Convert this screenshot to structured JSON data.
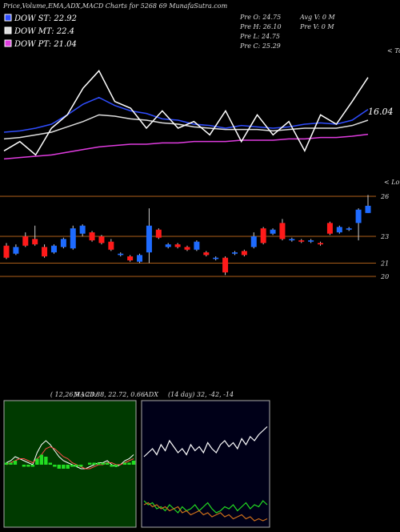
{
  "header": {
    "title": "Price,Volume,EMA,ADX,MACD Charts for 5268 69 MunafaSutra.com"
  },
  "stats": [
    "Pre O: 24.75",
    "Pre H: 26.10",
    "Pre L: 24.75",
    "Pre C: 25.29"
  ],
  "volume_stats": [
    "Avg V: 0  M",
    "Pre V: 0  M"
  ],
  "chart_data": [
    {
      "type": "line",
      "annotation": "16.04",
      "top_label": "< Tops",
      "bottom_label": "< Lows",
      "ylim": [
        17,
        27.5
      ],
      "series": [
        {
          "name": "DOW ST: 22.92",
          "color": "#2f4dff",
          "values": [
            21.2,
            21.3,
            21.5,
            21.8,
            22.5,
            23.3,
            23.8,
            23.2,
            22.8,
            22.6,
            22.2,
            22.1,
            21.8,
            21.7,
            21.5,
            21.7,
            21.6,
            21.5,
            21.6,
            21.8,
            21.9,
            21.8,
            22.1,
            22.9
          ]
        },
        {
          "name": "DOW MT: 22.4",
          "color": "#dddddd",
          "values": [
            20.7,
            20.8,
            21,
            21.2,
            21.6,
            22,
            22.5,
            22.4,
            22.2,
            22.1,
            21.9,
            21.8,
            21.6,
            21.5,
            21.4,
            21.4,
            21.4,
            21.3,
            21.4,
            21.5,
            21.5,
            21.5,
            21.7,
            22.1
          ]
        },
        {
          "name": "DOW PT: 21.04",
          "color": "#e03ce0",
          "values": [
            19.2,
            19.3,
            19.4,
            19.5,
            19.7,
            19.9,
            20.1,
            20.2,
            20.3,
            20.3,
            20.4,
            20.4,
            20.5,
            20.5,
            20.5,
            20.6,
            20.6,
            20.6,
            20.7,
            20.7,
            20.8,
            20.8,
            20.9,
            21.04
          ]
        },
        {
          "color": "#ffffff",
          "values": [
            19.8,
            20.5,
            19.5,
            21.5,
            22.5,
            24.5,
            25.8,
            23.5,
            23,
            21.5,
            22.8,
            21.5,
            22,
            21,
            22.8,
            20.5,
            22.5,
            21,
            22,
            19.8,
            22.5,
            21.8,
            23.5,
            25.3
          ]
        }
      ]
    },
    {
      "type": "candlestick",
      "ylim": [
        19.1,
        26.3
      ],
      "yticks": [
        26,
        23,
        21,
        20
      ],
      "up_color": "#1e6bff",
      "down_color": "#ff1a1a",
      "grid_color": "#b0601a",
      "open": [
        22.3,
        21.7,
        23.0,
        22.8,
        22.2,
        21.8,
        22.2,
        22.1,
        23.2,
        23.3,
        23.0,
        22.6,
        21.6,
        21.5,
        21.1,
        21.8,
        23.5,
        22.2,
        22.4,
        22.2,
        22.0,
        21.8,
        21.3,
        21.4,
        21.7,
        21.9,
        22.2,
        23.6,
        23.2,
        24.0,
        22.7,
        22.7,
        22.6,
        22.5,
        24.0,
        23.3,
        23.5,
        24.0,
        24.75
      ],
      "close": [
        21.4,
        22.2,
        22.3,
        22.4,
        21.5,
        22.3,
        22.8,
        23.6,
        23.8,
        22.7,
        22.5,
        22.0,
        21.7,
        21.2,
        21.6,
        23.8,
        22.9,
        22.4,
        22.2,
        22.0,
        22.6,
        21.6,
        21.4,
        20.3,
        21.8,
        21.6,
        23.0,
        22.5,
        23.5,
        22.8,
        22.8,
        22.6,
        22.7,
        22.4,
        23.2,
        23.7,
        23.6,
        25.0,
        25.29
      ],
      "high": [
        22.5,
        22.4,
        23.3,
        23.8,
        22.4,
        22.4,
        22.9,
        23.8,
        23.9,
        23.4,
        23.1,
        22.8,
        21.8,
        21.6,
        21.7,
        25.1,
        23.6,
        22.5,
        22.5,
        22.3,
        22.7,
        21.9,
        21.5,
        21.5,
        21.9,
        22.0,
        23.3,
        23.7,
        23.6,
        24.3,
        22.9,
        22.8,
        22.8,
        22.6,
        24.1,
        23.8,
        23.7,
        25.1,
        26.1
      ],
      "low": [
        21.3,
        21.6,
        22.2,
        22.3,
        21.4,
        21.7,
        22.1,
        22.0,
        23.0,
        22.6,
        22.4,
        21.9,
        21.5,
        21.1,
        21.0,
        21.0,
        22.8,
        22.1,
        22.1,
        21.9,
        21.9,
        21.5,
        21.2,
        20.1,
        21.6,
        21.5,
        22.1,
        22.4,
        23.1,
        22.7,
        22.6,
        22.5,
        22.5,
        22.3,
        23.1,
        23.2,
        23.4,
        22.7,
        24.75
      ]
    },
    {
      "type": "macd",
      "label": "MACD:",
      "params": "( 12,26,9 ) 23.88, 22.72, 0.66",
      "ylim": [
        -3,
        3
      ],
      "series": [
        {
          "color": "#ffffff",
          "values": [
            0.1,
            0.2,
            0.4,
            0.3,
            0.2,
            0.1,
            0.0,
            0.6,
            1.0,
            1.2,
            1.0,
            0.7,
            0.4,
            0.2,
            0.1,
            0.0,
            -0.1,
            -0.2,
            -0.2,
            -0.1,
            0.0,
            0.1,
            0.1,
            0.2,
            0.0,
            -0.1,
            0.0,
            0.2,
            0.3,
            0.5
          ]
        },
        {
          "color": "#ff4a4a",
          "values": [
            0.0,
            0.1,
            0.2,
            0.3,
            0.3,
            0.2,
            0.1,
            0.3,
            0.5,
            0.8,
            0.9,
            0.8,
            0.6,
            0.4,
            0.3,
            0.1,
            0.0,
            -0.1,
            -0.2,
            -0.2,
            -0.1,
            0.0,
            0.0,
            0.1,
            0.1,
            0.0,
            0.0,
            0.1,
            0.2,
            0.3
          ]
        },
        {
          "type": "histogram",
          "color": "#22dd22",
          "values": [
            0.1,
            0.1,
            0.2,
            0.0,
            -0.1,
            -0.1,
            -0.1,
            0.3,
            0.5,
            0.4,
            0.1,
            -0.1,
            -0.2,
            -0.2,
            -0.2,
            -0.1,
            -0.1,
            -0.1,
            0.0,
            0.1,
            0.1,
            0.1,
            0.1,
            0.1,
            -0.1,
            -0.1,
            0.0,
            0.1,
            0.1,
            0.2
          ]
        }
      ]
    },
    {
      "type": "adx",
      "label": "ADX",
      "params": "(14 day) 32, -42, -14",
      "ylim": [
        0,
        60
      ],
      "series": [
        {
          "color": "#ffffff",
          "values": [
            34,
            36,
            38,
            35,
            40,
            37,
            42,
            39,
            36,
            38,
            35,
            40,
            37,
            39,
            36,
            41,
            38,
            36,
            40,
            42,
            39,
            41,
            38,
            43,
            40,
            44,
            42,
            45,
            47,
            49
          ]
        },
        {
          "color": "#22dd22",
          "values": [
            12,
            10,
            11,
            8,
            9,
            7,
            10,
            8,
            6,
            9,
            7,
            8,
            10,
            7,
            9,
            11,
            8,
            6,
            7,
            9,
            8,
            10,
            7,
            9,
            11,
            8,
            10,
            9,
            12,
            10
          ]
        },
        {
          "color": "#d0701a",
          "values": [
            10,
            11,
            9,
            10,
            8,
            9,
            7,
            8,
            9,
            6,
            7,
            5,
            6,
            7,
            5,
            6,
            4,
            5,
            6,
            4,
            5,
            3,
            4,
            5,
            3,
            4,
            2,
            3,
            2,
            3
          ]
        }
      ]
    }
  ]
}
